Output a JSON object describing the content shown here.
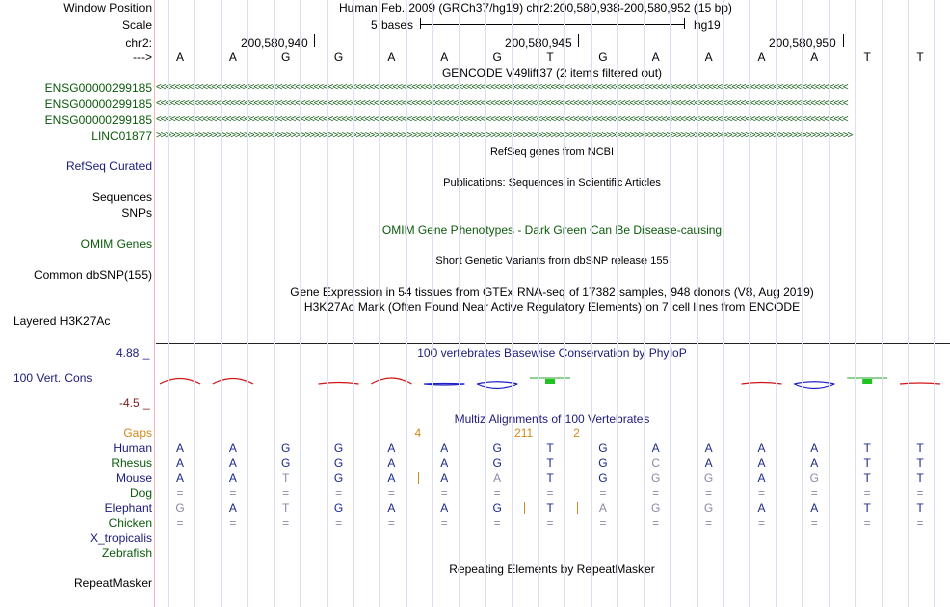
{
  "header": {
    "window_position_label": "Window Position",
    "window_position_value": "Human Feb. 2009 (GRCh37/hg19)   chr2:200,580,938-200,580,952 (15 bp)",
    "scale_label": "Scale",
    "scale_value": "5 bases",
    "assembly": "hg19",
    "chr_label": "chr2:",
    "coords": [
      "200,580,940",
      "200,580,945",
      "200,580,950"
    ],
    "strand_label": "--->"
  },
  "sequence": [
    "A",
    "A",
    "G",
    "G",
    "A",
    "A",
    "G",
    "T",
    "G",
    "A",
    "A",
    "A",
    "A",
    "T",
    "T"
  ],
  "gencode": {
    "title": "GENCODE V49lift37 (2 items filtered out)",
    "tracks": [
      {
        "label": "ENSG00000299185",
        "direction": "reverse"
      },
      {
        "label": "ENSG00000299185",
        "direction": "reverse"
      },
      {
        "label": "ENSG00000299185",
        "direction": "reverse"
      },
      {
        "label": "LINC01877",
        "direction": "forward"
      }
    ],
    "arrow_reverse": "<<<<<<<<<<<<<<<<<<<<<<<<<<<<<<<<<<<<<<<<<<<<<<<<<<<<<<<<<<<<<<<<<<<<<<<<<<<<<<<<<<<<<<<<<<<<<<<<<<<<<<<<<<<<<<<<<<<<<<<<<<<<<<<<<<<<<<<<<<<<<<<<<<<<<",
    "arrow_forward": ">>>>>>>>>>>>>>>>>>>>>>>>>>>>>>>>>>>>>>>>>>>>>>>>>>>>>>>>>>>>>>>>>>>>>>>>>>>>>>>>>>>>>>>>>>>>>>>>>>>>>>>>>>>>>>>>>>>>>>>>>>>>>>>>>>>>>>>>>>>>>>>>>>>>>>"
  },
  "tracks": {
    "refseq_label": "RefSeq Curated",
    "refseq_title": "RefSeq genes from NCBI",
    "sequences_label": "Sequences",
    "publications_title": "Publications: Sequences in Scientific Articles",
    "snps_label": "SNPs",
    "omim_title": "OMIM Gene Phenotypes - Dark Green Can Be Disease-causing",
    "omim_label": "OMIM Genes",
    "dbsnp_title": "Short Genetic Variants from dbSNP release 155",
    "dbsnp_label": "Common dbSNP(155)",
    "gtex_title": "Gene Expression in 54 tissues from GTEx RNA-seq of 17382 samples, 948 donors (V8, Aug 2019)",
    "h3k27ac_title": "H3K27Ac Mark (Often Found Near Active Regulatory Elements) on 7 cell lines from ENCODE",
    "h3k27ac_label": "Layered H3K27Ac",
    "phylop_title": "100 vertebrates Basewise Conservation by PhyloP",
    "phylop_label": "100 Vert. Cons",
    "phylop_max": "4.88 _",
    "phylop_min": "-4.5 _",
    "multiz_title": "Multiz Alignments of 100 Vertebrates",
    "repeatmasker_title": "Repeating Elements by RepeatMasker",
    "repeatmasker_label": "RepeatMasker"
  },
  "phylop_scores": [
    1.1,
    1.1,
    0,
    0.3,
    1.2,
    -0.2,
    -0.9,
    0.8,
    0,
    0,
    0,
    0.3,
    -0.9,
    1.3,
    0.2
  ],
  "multiz": {
    "gaps_label": "Gaps",
    "gap_counts": [
      {
        "after_base": 5,
        "text": "4"
      },
      {
        "after_base": 7,
        "text": "211"
      },
      {
        "after_base": 8,
        "text": "2"
      }
    ],
    "species": [
      {
        "label": "Human",
        "bases": [
          "A",
          "A",
          "G",
          "G",
          "A",
          "A",
          "G",
          "T",
          "G",
          "A",
          "A",
          "A",
          "A",
          "T",
          "T"
        ]
      },
      {
        "label": "Rhesus",
        "bases": [
          "A",
          "A",
          "G",
          "G",
          "A",
          "A",
          "G",
          "T",
          "G",
          "C",
          "A",
          "A",
          "A",
          "T",
          "T"
        ]
      },
      {
        "label": "Mouse",
        "bases": [
          "A",
          "A",
          "T",
          "G",
          "A",
          "A",
          "A",
          "T",
          "G",
          "G",
          "G",
          "A",
          "G",
          "T",
          "T"
        ]
      },
      {
        "label": "Dog",
        "bases": [
          "=",
          "=",
          "=",
          "=",
          "=",
          "=",
          "=",
          "=",
          "=",
          "=",
          "=",
          "=",
          "=",
          "=",
          "="
        ]
      },
      {
        "label": "Elephant",
        "bases": [
          "G",
          "A",
          "T",
          "G",
          "A",
          "A",
          "G",
          "T",
          "A",
          "G",
          "G",
          "A",
          "A",
          "T",
          "T"
        ]
      },
      {
        "label": "Chicken",
        "bases": [
          "=",
          "=",
          "=",
          "=",
          "=",
          "=",
          "=",
          "=",
          "=",
          "=",
          "=",
          "=",
          "=",
          "=",
          "="
        ]
      },
      {
        "label": "X_tropicalis",
        "bases": []
      },
      {
        "label": "Zebrafish",
        "bases": []
      }
    ]
  },
  "colors": {
    "gene_green": "#0a5a0a",
    "refseq_blue": "#1a1a7a",
    "conservation_red": "#d21414",
    "conservation_blue": "#1e1ec8",
    "gap_orange": "#d08a1a",
    "match_blue": "#1a2a8a",
    "mismatch_gray": "#8a8aa8"
  }
}
